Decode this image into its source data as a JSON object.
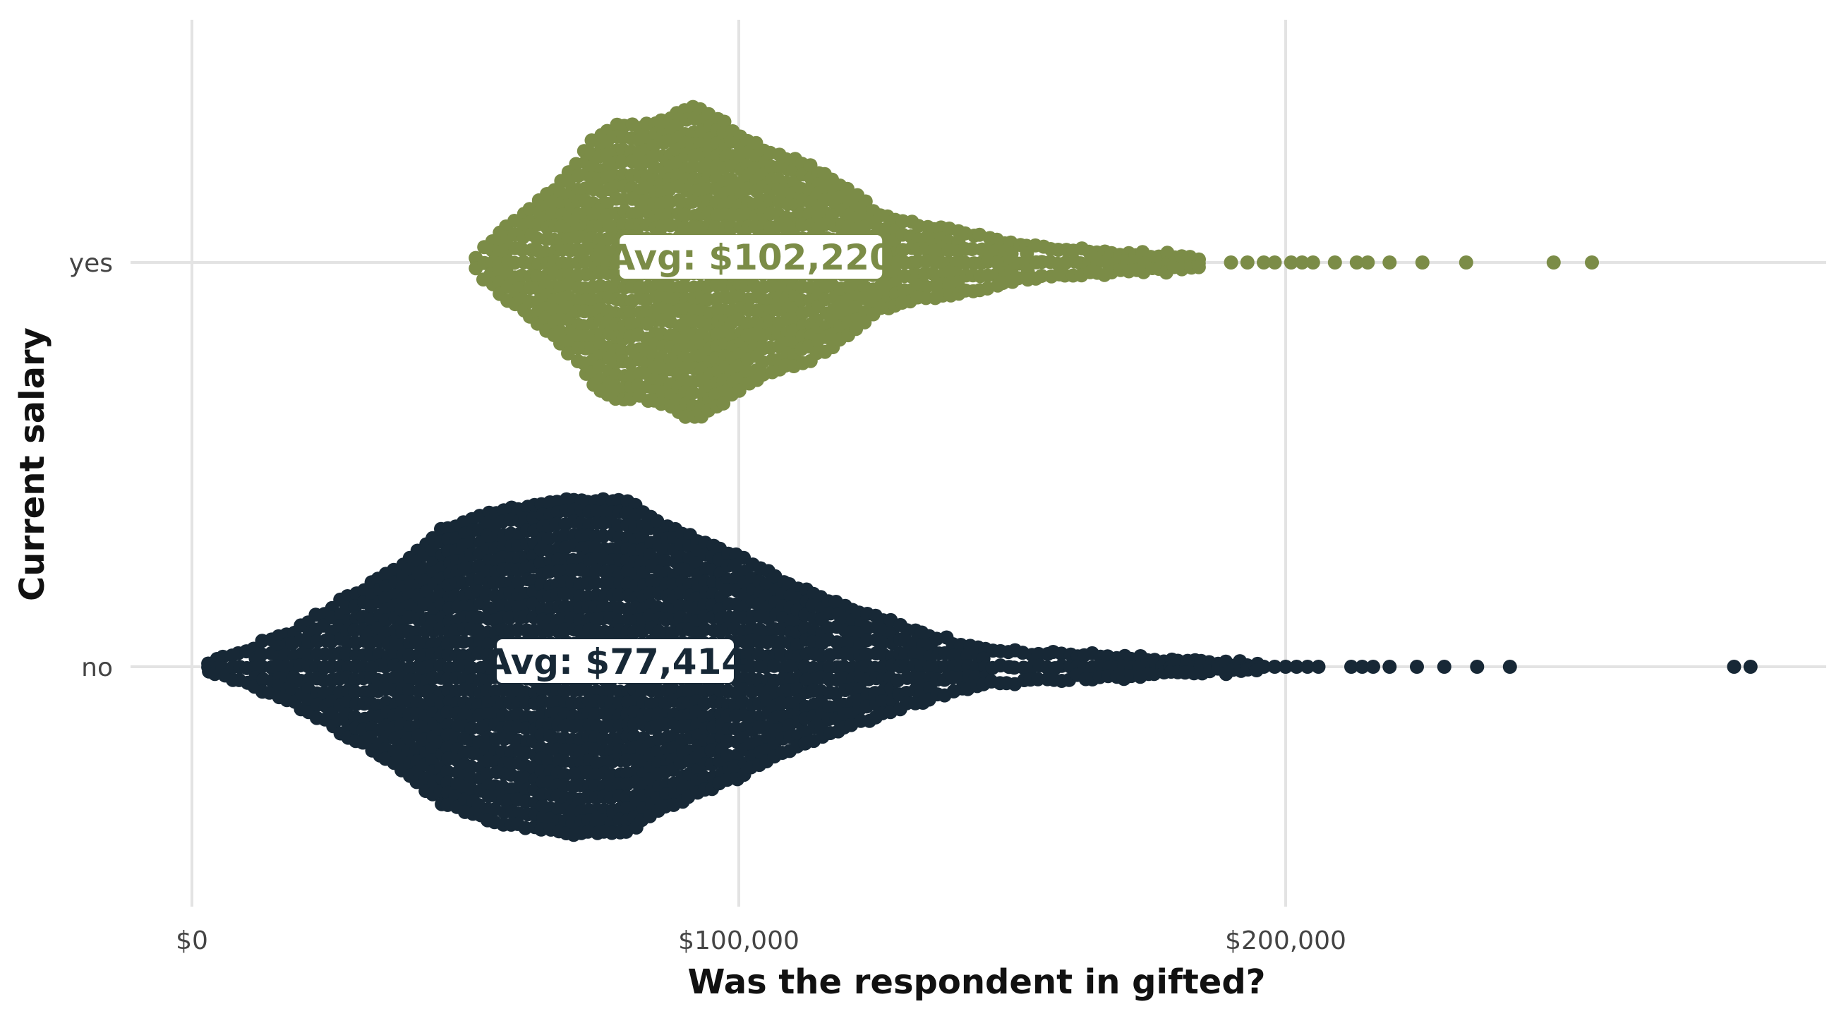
{
  "chart_data": {
    "type": "scatter",
    "subtype": "beeswarm",
    "title": "",
    "xlabel": "Was the respondent in gifted?",
    "ylabel": "Current salary",
    "xlim": [
      0,
      298000
    ],
    "x_ticks": [
      0,
      100000,
      200000
    ],
    "x_tick_labels": [
      "$0",
      "$100,000",
      "$200,000"
    ],
    "grid": true,
    "categories": [
      "yes",
      "no"
    ],
    "series": [
      {
        "category": "yes",
        "color": "#7b8c47",
        "range": [
          52000,
          256000
        ],
        "mean": 102220,
        "mean_label": "Avg: $102,220",
        "density_profile": [
          [
            52000,
            0.05
          ],
          [
            56000,
            0.18
          ],
          [
            60000,
            0.3
          ],
          [
            66000,
            0.46
          ],
          [
            70000,
            0.62
          ],
          [
            74000,
            0.8
          ],
          [
            78000,
            0.88
          ],
          [
            82000,
            0.86
          ],
          [
            86000,
            0.9
          ],
          [
            90000,
            0.98
          ],
          [
            92000,
            1.0
          ],
          [
            96000,
            0.92
          ],
          [
            100000,
            0.82
          ],
          [
            104000,
            0.72
          ],
          [
            110000,
            0.66
          ],
          [
            116000,
            0.56
          ],
          [
            120000,
            0.46
          ],
          [
            126000,
            0.3
          ],
          [
            132000,
            0.24
          ],
          [
            140000,
            0.2
          ],
          [
            150000,
            0.12
          ],
          [
            160000,
            0.08
          ],
          [
            170000,
            0.06
          ],
          [
            180000,
            0.04
          ],
          [
            185000,
            0.02
          ]
        ],
        "outliers": [
          190000,
          193000,
          196000,
          198000,
          201000,
          203000,
          205000,
          209000,
          213000,
          215000,
          219000,
          225000,
          233000,
          249000,
          256000
        ]
      },
      {
        "category": "no",
        "color": "#172836",
        "range": [
          3000,
          285000
        ],
        "mean": 77414,
        "mean_label": "Avg: $77,414",
        "density_profile": [
          [
            3000,
            0.02
          ],
          [
            10000,
            0.1
          ],
          [
            20000,
            0.24
          ],
          [
            30000,
            0.44
          ],
          [
            40000,
            0.64
          ],
          [
            45000,
            0.8
          ],
          [
            55000,
            0.92
          ],
          [
            65000,
            0.98
          ],
          [
            72000,
            1.0
          ],
          [
            80000,
            0.98
          ],
          [
            85000,
            0.86
          ],
          [
            92000,
            0.76
          ],
          [
            100000,
            0.66
          ],
          [
            110000,
            0.48
          ],
          [
            120000,
            0.36
          ],
          [
            135000,
            0.18
          ],
          [
            145000,
            0.1
          ],
          [
            160000,
            0.07
          ],
          [
            175000,
            0.05
          ],
          [
            185000,
            0.03
          ],
          [
            195000,
            0.015
          ]
        ],
        "outliers": [
          196000,
          198000,
          200000,
          202000,
          204000,
          206000,
          212000,
          214000,
          216000,
          219000,
          224000,
          229000,
          235000,
          241000,
          282000,
          285000
        ]
      }
    ]
  }
}
